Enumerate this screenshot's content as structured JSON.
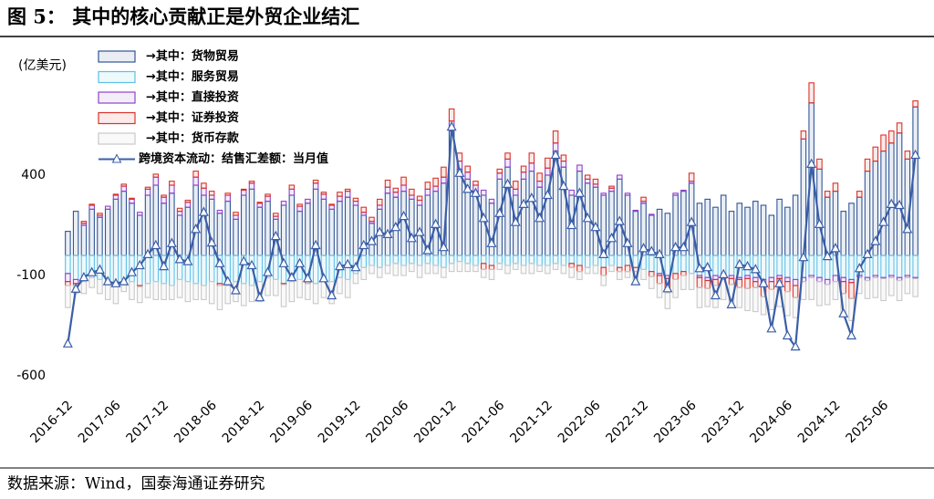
{
  "chart_data": {
    "type": "bar",
    "stacked": true,
    "title": "图 5：  其中的核心贡献正是外贸企业结汇",
    "source": "数据来源：Wind，国泰海通证券研究",
    "y_label": "(亿美元)",
    "ylim": [
      -700,
      1000
    ],
    "yticks": [
      -600,
      -100,
      400
    ],
    "grid": false,
    "legend": "upper left",
    "categories": [
      "2016-12",
      null,
      null,
      null,
      null,
      null,
      "2017-06",
      null,
      null,
      null,
      null,
      null,
      "2017-12",
      null,
      null,
      null,
      null,
      null,
      "2018-06",
      null,
      null,
      null,
      null,
      null,
      "2018-12",
      null,
      null,
      null,
      null,
      null,
      "2019-06",
      null,
      null,
      null,
      null,
      null,
      "2019-12",
      null,
      null,
      null,
      null,
      null,
      "2020-06",
      null,
      null,
      null,
      null,
      null,
      "2020-12",
      null,
      null,
      null,
      null,
      null,
      "2021-06",
      null,
      null,
      null,
      null,
      null,
      "2021-12",
      null,
      null,
      null,
      null,
      null,
      "2022-06",
      null,
      null,
      null,
      null,
      null,
      "2022-12",
      null,
      null,
      null,
      null,
      null,
      "2023-06",
      null,
      null,
      null,
      null,
      null,
      "2023-12",
      null,
      null,
      null,
      null,
      null,
      "2024-06",
      null,
      null,
      null,
      null,
      null,
      "2024-12",
      null,
      null,
      null,
      null,
      null,
      "2025-06",
      null,
      null,
      null,
      null
    ],
    "series": [
      {
        "name": "→其中：货物贸易",
        "type": "bar",
        "color": "#2f5597",
        "values": [
          120,
          220,
          150,
          230,
          190,
          230,
          280,
          320,
          260,
          200,
          300,
          350,
          260,
          310,
          200,
          240,
          350,
          300,
          280,
          210,
          270,
          180,
          300,
          330,
          240,
          270,
          180,
          250,
          300,
          220,
          260,
          330,
          280,
          230,
          270,
          290,
          250,
          200,
          160,
          230,
          310,
          290,
          320,
          280,
          250,
          300,
          320,
          360,
          620,
          430,
          380,
          320,
          300,
          260,
          380,
          440,
          300,
          380,
          420,
          340,
          400,
          520,
          440,
          300,
          420,
          360,
          340,
          300,
          320,
          380,
          300,
          220,
          260,
          200,
          230,
          210,
          300,
          320,
          360,
          260,
          280,
          240,
          300,
          220,
          260,
          240,
          270,
          250,
          200,
          280,
          240,
          300,
          580,
          760,
          430,
          290,
          320,
          220,
          260,
          290,
          420,
          470,
          520,
          560,
          610,
          480,
          740
        ]
      },
      {
        "name": "→其中：服务贸易",
        "type": "bar",
        "color": "#5bc0e6",
        "values": [
          -90,
          -120,
          -130,
          -110,
          -120,
          -130,
          -140,
          -120,
          -130,
          -150,
          -140,
          -130,
          -140,
          -150,
          -120,
          -130,
          -140,
          -150,
          -130,
          -140,
          -150,
          -130,
          -140,
          -150,
          -130,
          -110,
          -120,
          -140,
          -130,
          -120,
          -130,
          -140,
          -120,
          -130,
          -110,
          -120,
          -90,
          -60,
          -50,
          -60,
          -50,
          -40,
          -50,
          -40,
          -50,
          -40,
          -50,
          -60,
          -40,
          -30,
          -40,
          -50,
          -40,
          -50,
          -40,
          -50,
          -40,
          -50,
          -40,
          -50,
          -50,
          -40,
          -50,
          -40,
          -50,
          -60,
          -50,
          -60,
          -50,
          -60,
          -50,
          -60,
          -70,
          -80,
          -90,
          -100,
          -90,
          -80,
          -90,
          -100,
          -110,
          -100,
          -90,
          -100,
          -110,
          -100,
          -110,
          -120,
          -110,
          -100,
          -110,
          -120,
          -110,
          -100,
          -110,
          -120,
          -100,
          -110,
          -120,
          -100,
          -110,
          -100,
          -110,
          -100,
          -110,
          -100,
          -110
        ]
      },
      {
        "name": "→其中：直接投资",
        "type": "bar",
        "color": "#8e44c8",
        "values": [
          -40,
          -20,
          10,
          20,
          10,
          15,
          20,
          25,
          20,
          15,
          30,
          40,
          30,
          40,
          20,
          25,
          40,
          35,
          20,
          15,
          30,
          20,
          25,
          30,
          20,
          25,
          15,
          20,
          30,
          25,
          20,
          30,
          25,
          20,
          25,
          30,
          20,
          15,
          10,
          20,
          30,
          25,
          30,
          20,
          25,
          30,
          25,
          30,
          50,
          40,
          35,
          30,
          25,
          20,
          30,
          40,
          30,
          35,
          40,
          30,
          35,
          40,
          30,
          25,
          30,
          20,
          15,
          10,
          15,
          20,
          10,
          5,
          10,
          5,
          -10,
          -15,
          10,
          5,
          10,
          -10,
          -15,
          -20,
          -10,
          -15,
          -10,
          -15,
          -20,
          -25,
          -20,
          -15,
          -20,
          -30,
          -20,
          -10,
          -20,
          -25,
          -30,
          -20,
          -15,
          -10,
          -15,
          -10,
          -5,
          -10,
          -15,
          -10,
          -5
        ]
      },
      {
        "name": "→其中：证券投资",
        "type": "bar",
        "color": "#d7342a",
        "values": [
          -20,
          -10,
          10,
          5,
          10,
          -10,
          5,
          10,
          5,
          -5,
          10,
          15,
          10,
          20,
          15,
          10,
          30,
          25,
          20,
          -10,
          10,
          15,
          5,
          10,
          5,
          10,
          15,
          -5,
          20,
          10,
          -10,
          15,
          10,
          5,
          20,
          10,
          15,
          25,
          20,
          30,
          35,
          20,
          40,
          30,
          20,
          35,
          40,
          50,
          60,
          40,
          30,
          20,
          -30,
          -20,
          20,
          30,
          40,
          30,
          50,
          40,
          50,
          60,
          30,
          -20,
          -30,
          20,
          25,
          -40,
          10,
          -20,
          -30,
          -20,
          20,
          -25,
          -40,
          -70,
          -30,
          -20,
          40,
          -50,
          -40,
          -30,
          -20,
          -30,
          -40,
          -50,
          -30,
          -60,
          -40,
          -30,
          -50,
          -60,
          40,
          100,
          50,
          30,
          40,
          -60,
          -80,
          30,
          60,
          70,
          80,
          60,
          50,
          40,
          30
        ]
      },
      {
        "name": "→其中：货币存款",
        "type": "bar",
        "color": "#c9c9c9",
        "values": [
          -110,
          -40,
          -60,
          -50,
          -70,
          -80,
          -100,
          -60,
          -90,
          -80,
          -70,
          -90,
          -80,
          -70,
          -90,
          -100,
          -80,
          -70,
          -110,
          -120,
          -90,
          -100,
          -110,
          -80,
          -100,
          -90,
          -80,
          -110,
          -100,
          -90,
          -80,
          -100,
          -90,
          -110,
          -80,
          -90,
          -50,
          -60,
          -40,
          -50,
          -40,
          -60,
          -50,
          -40,
          -60,
          -50,
          -40,
          -50,
          -40,
          -50,
          -40,
          -30,
          -40,
          -50,
          -30,
          -40,
          -30,
          -40,
          -50,
          -30,
          -40,
          -30,
          -40,
          -50,
          -40,
          -30,
          -40,
          -50,
          -30,
          -40,
          -30,
          -40,
          -50,
          -60,
          -70,
          -80,
          -90,
          -70,
          -80,
          -100,
          -90,
          -110,
          -100,
          -90,
          -100,
          -110,
          -120,
          -90,
          -100,
          -110,
          -120,
          -100,
          -90,
          -110,
          -120,
          -100,
          -90,
          -100,
          -110,
          -80,
          -90,
          -100,
          -110,
          -90,
          -100,
          -80,
          -90
        ]
      },
      {
        "name": "跨境资本流动：结售汇差额：当月值",
        "type": "line",
        "color": "#3a5ea8",
        "values": [
          -440,
          -167,
          -110,
          -85,
          -72,
          -130,
          -140,
          -130,
          -85,
          -50,
          5,
          50,
          -55,
          60,
          -20,
          -30,
          130,
          215,
          63,
          -40,
          -130,
          -175,
          -30,
          -50,
          -210,
          -85,
          95,
          -40,
          -110,
          -40,
          -115,
          50,
          -115,
          -200,
          -55,
          -45,
          -60,
          50,
          70,
          115,
          105,
          140,
          195,
          85,
          115,
          25,
          155,
          40,
          640,
          410,
          330,
          310,
          185,
          60,
          210,
          355,
          165,
          255,
          285,
          185,
          300,
          500,
          345,
          150,
          310,
          185,
          140,
          5,
          85,
          170,
          60,
          -130,
          35,
          20,
          5,
          -165,
          40,
          40,
          165,
          -65,
          -60,
          -200,
          -95,
          -245,
          -45,
          -55,
          -70,
          -140,
          -365,
          -140,
          -400,
          -455,
          -10,
          455,
          155,
          -5,
          35,
          -290,
          -400,
          -65,
          5,
          70,
          165,
          255,
          250,
          130,
          500
        ]
      }
    ]
  }
}
